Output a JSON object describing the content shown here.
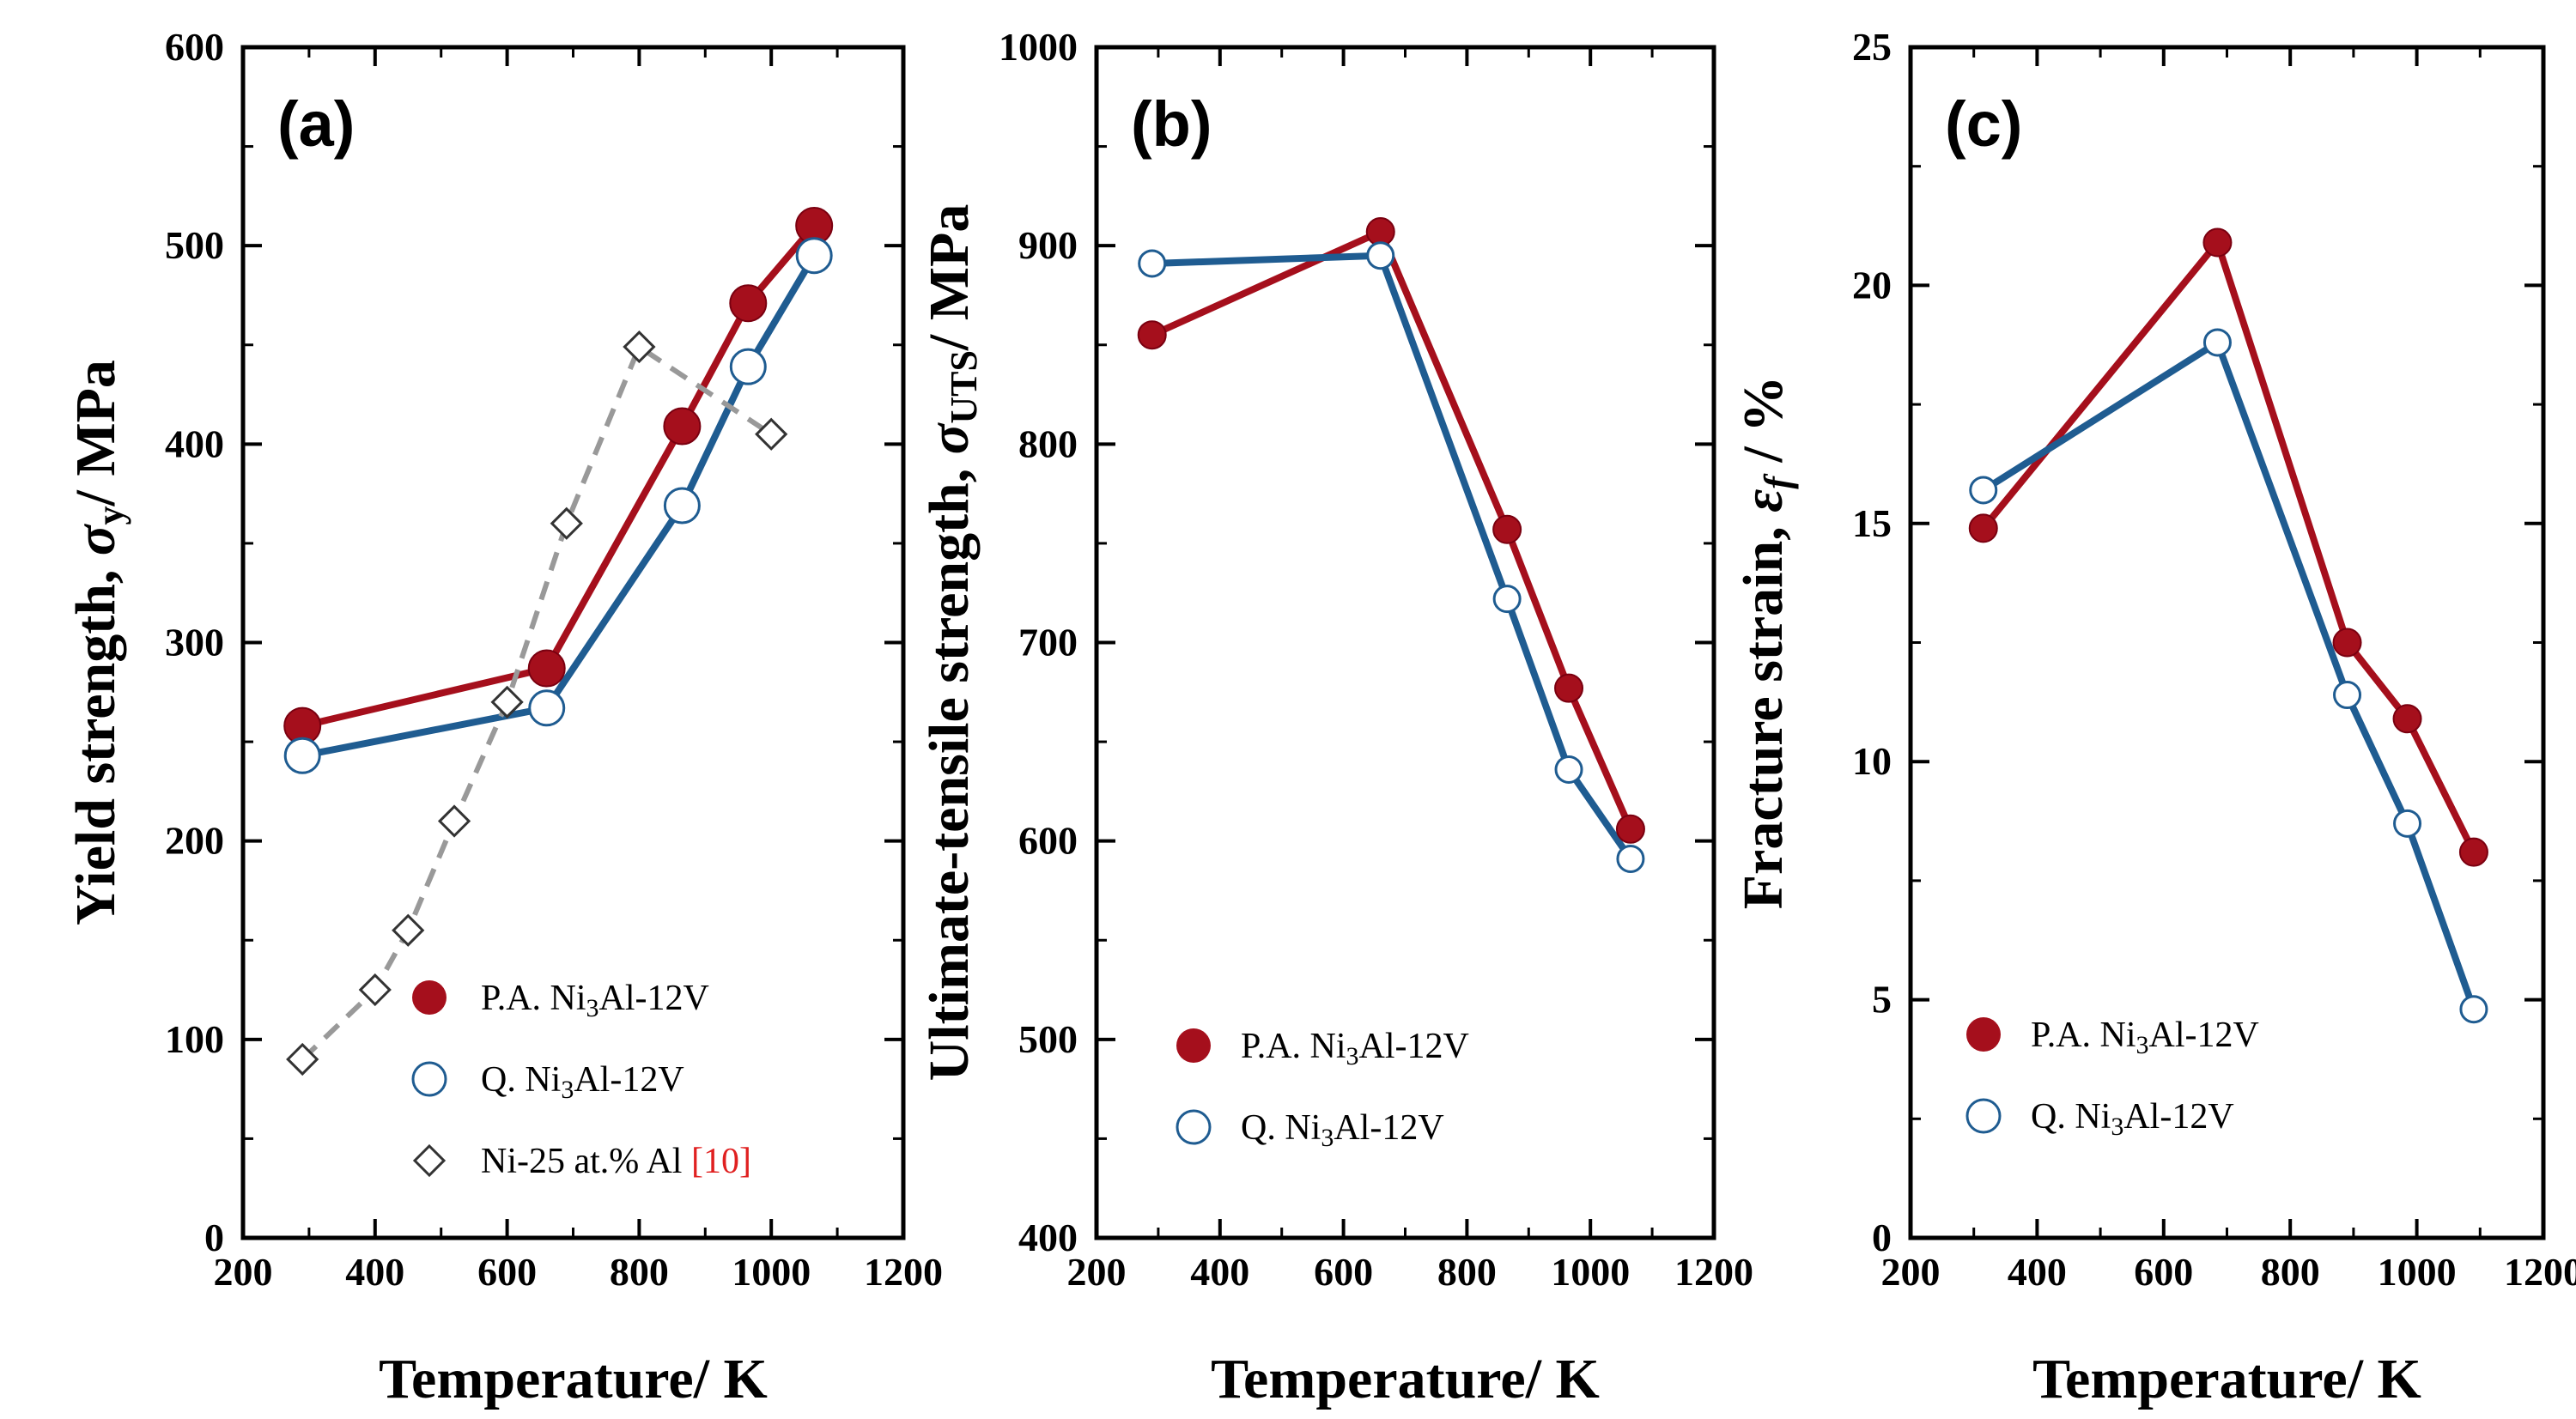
{
  "colors": {
    "pa": "#a50f1c",
    "q": "#1f5c91",
    "ref": "#999999",
    "ref_label": "#e02020"
  },
  "chart_data": [
    {
      "type": "line",
      "panel_label": "(a)",
      "xlabel": "Temperature/ K",
      "ylabel": {
        "main": "Yield strength, ",
        "symbol": "σ",
        "sub": "y",
        "unit": "/ MPa"
      },
      "xlim": [
        200,
        1200
      ],
      "ylim": [
        0,
        600
      ],
      "xticks": [
        200,
        400,
        600,
        800,
        1000,
        1200
      ],
      "yticks": [
        0,
        100,
        200,
        300,
        400,
        500,
        600
      ],
      "series": [
        {
          "name": "P.A. Ni3Al-12V",
          "marker": "filled",
          "x": [
            290,
            660,
            865,
            965,
            1065
          ],
          "values": [
            258,
            287,
            409,
            471,
            510
          ]
        },
        {
          "name": "Q. Ni3Al-12V",
          "marker": "open",
          "x": [
            290,
            660,
            865,
            965,
            1065
          ],
          "values": [
            243,
            267,
            369,
            439,
            495
          ]
        },
        {
          "name": "Ni-25 at.% Al",
          "marker": "diamond",
          "dashed": true,
          "x": [
            290,
            400,
            450,
            520,
            600,
            690,
            800,
            1000
          ],
          "values": [
            90,
            125,
            155,
            210,
            270,
            360,
            449,
            405
          ]
        }
      ],
      "legend": [
        {
          "pre": "P.A. Ni",
          "sub": "3",
          "post": "Al-12V",
          "marker": "filled"
        },
        {
          "pre": "Q. Ni",
          "sub": "3",
          "post": "Al-12V",
          "marker": "open"
        },
        {
          "pre": "Ni-25 at.% Al ",
          "sub": "",
          "post": "",
          "ref": "[10]",
          "marker": "diamond"
        }
      ]
    },
    {
      "type": "line",
      "panel_label": "(b)",
      "xlabel": "Temperature/ K",
      "ylabel": {
        "main": "Ultimate-tensile strength, ",
        "symbol": "σ",
        "sub": "UTS",
        "unit": "/ MPa"
      },
      "xlim": [
        200,
        1200
      ],
      "ylim": [
        400,
        1000
      ],
      "xticks": [
        200,
        400,
        600,
        800,
        1000,
        1200
      ],
      "yticks": [
        400,
        500,
        600,
        700,
        800,
        900,
        1000
      ],
      "series": [
        {
          "name": "P.A. Ni3Al-12V",
          "marker": "filled",
          "x": [
            290,
            660,
            865,
            965,
            1065
          ],
          "values": [
            855,
            907,
            757,
            677,
            606
          ]
        },
        {
          "name": "Q. Ni3Al-12V",
          "marker": "open",
          "x": [
            290,
            660,
            865,
            965,
            1065
          ],
          "values": [
            891,
            895,
            722,
            636,
            591
          ]
        }
      ],
      "legend": [
        {
          "pre": "P.A. Ni",
          "sub": "3",
          "post": "Al-12V",
          "marker": "filled"
        },
        {
          "pre": "Q. Ni",
          "sub": "3",
          "post": "Al-12V",
          "marker": "open"
        }
      ]
    },
    {
      "type": "line",
      "panel_label": "(c)",
      "xlabel": "Temperature/ K",
      "ylabel": {
        "main": "Fracture strain, ",
        "symbol": "ε",
        "sub": "f",
        "unit": " / %"
      },
      "xlim": [
        200,
        1200
      ],
      "ylim": [
        0,
        25
      ],
      "xticks": [
        200,
        400,
        600,
        800,
        1000,
        1200
      ],
      "yticks": [
        0,
        5,
        10,
        15,
        20,
        25
      ],
      "series": [
        {
          "name": "P.A. Ni3Al-12V",
          "marker": "filled",
          "x": [
            315,
            685,
            890,
            985,
            1090
          ],
          "values": [
            14.9,
            20.9,
            12.5,
            10.9,
            8.1
          ]
        },
        {
          "name": "Q. Ni3Al-12V",
          "marker": "open",
          "x": [
            315,
            685,
            890,
            985,
            1090
          ],
          "values": [
            15.7,
            18.8,
            11.4,
            8.7,
            4.8
          ]
        }
      ],
      "legend": [
        {
          "pre": "P.A. Ni",
          "sub": "3",
          "post": "Al-12V",
          "marker": "filled"
        },
        {
          "pre": "Q. Ni",
          "sub": "3",
          "post": "Al-12V",
          "marker": "open"
        }
      ]
    }
  ]
}
